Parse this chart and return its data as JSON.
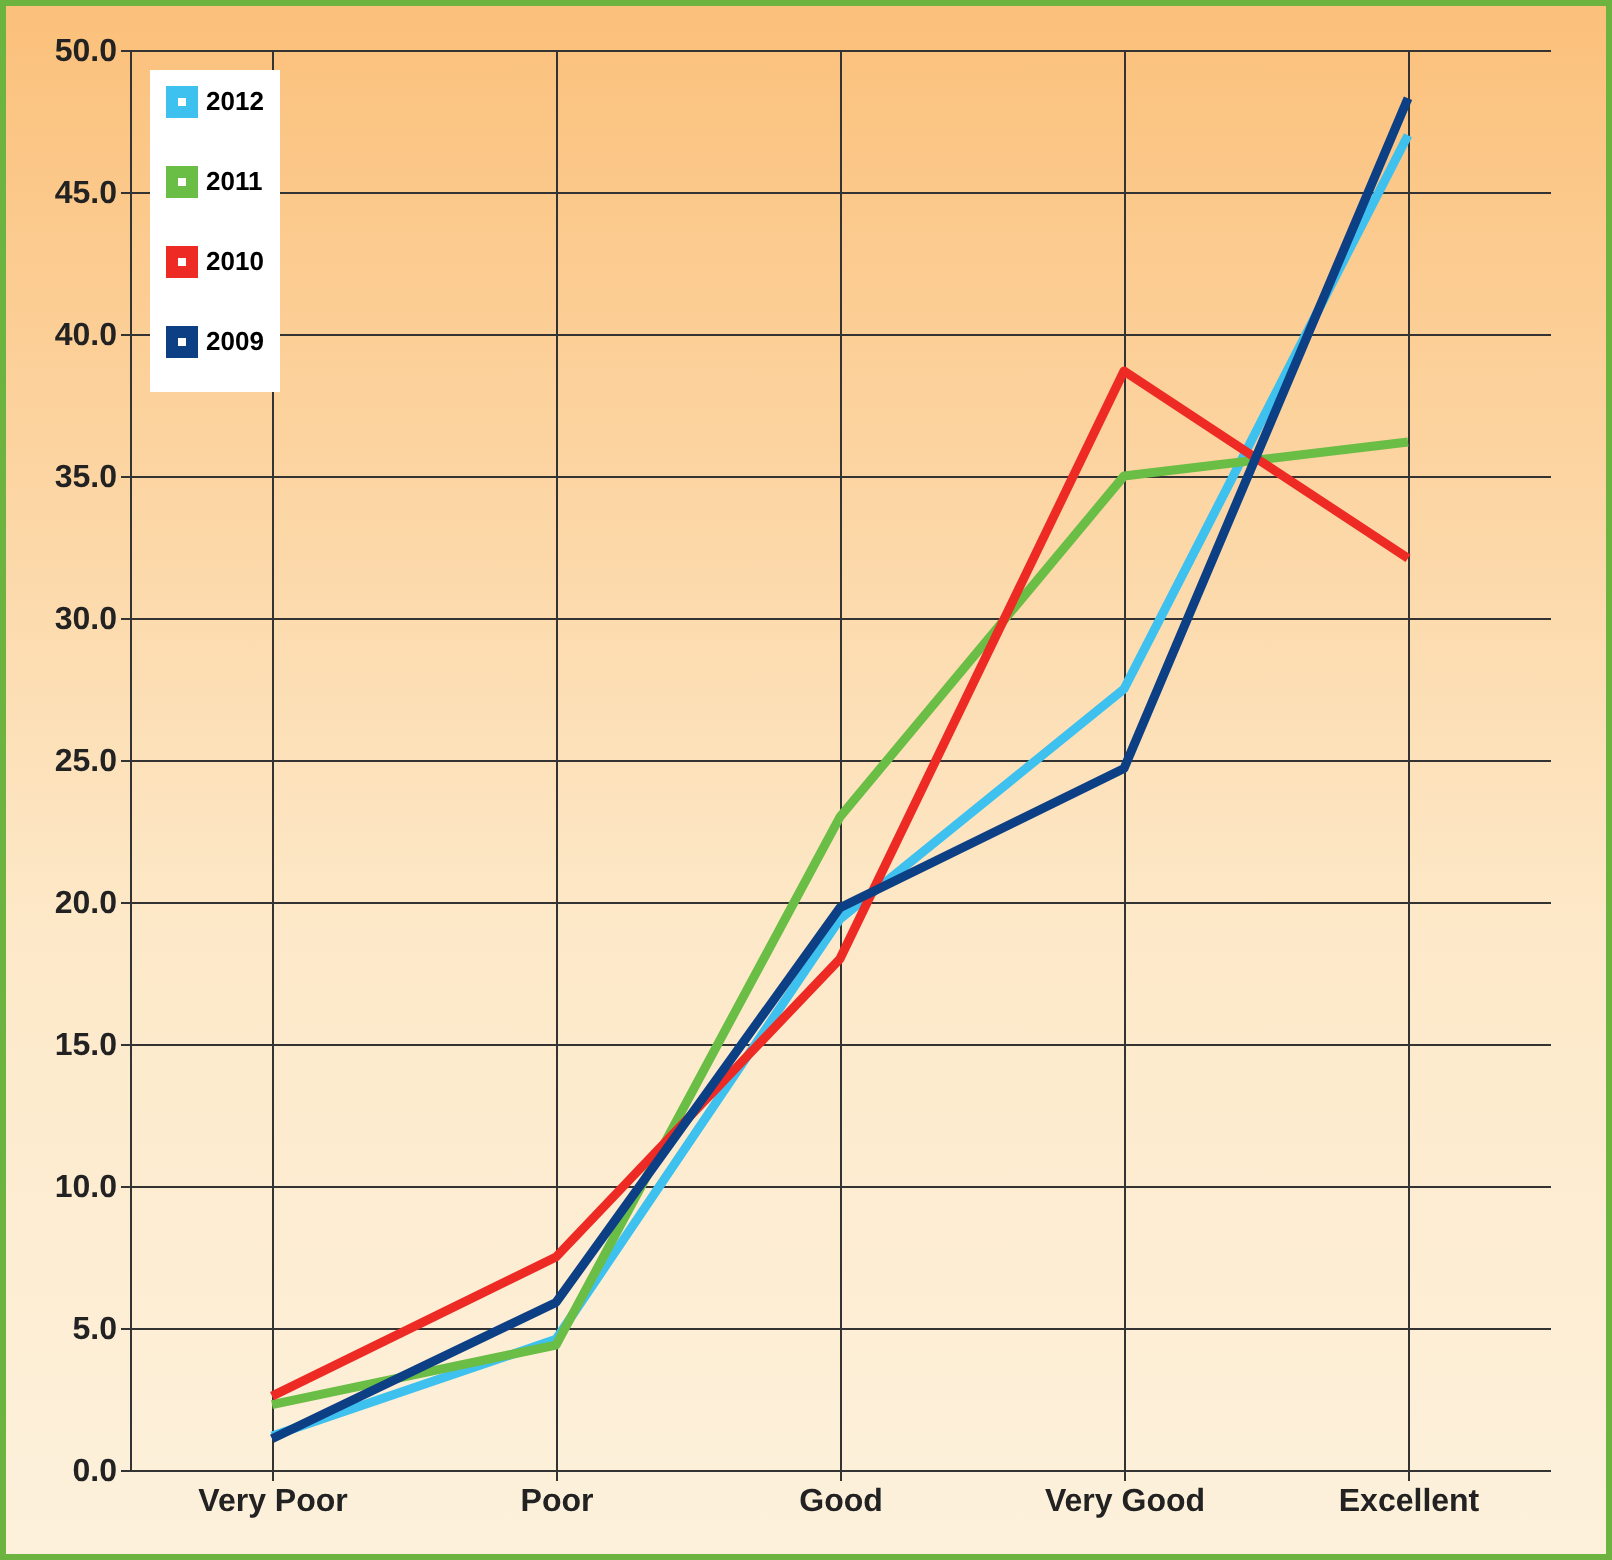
{
  "chart_data": {
    "type": "line",
    "categories": [
      "Very Poor",
      "Poor",
      "Good",
      "Very Good",
      "Excellent"
    ],
    "series": [
      {
        "name": "2012",
        "color": "#3fc1ef",
        "values": [
          1.2,
          4.6,
          19.4,
          27.5,
          47.0
        ]
      },
      {
        "name": "2011",
        "color": "#6abd45",
        "values": [
          2.3,
          4.4,
          23.0,
          35.0,
          36.2
        ]
      },
      {
        "name": "2010",
        "color": "#ee2a24",
        "values": [
          2.6,
          7.5,
          18.0,
          38.7,
          32.1
        ]
      },
      {
        "name": "2009",
        "color": "#0d3f85",
        "values": [
          1.1,
          5.9,
          19.8,
          24.7,
          48.3
        ]
      }
    ],
    "ylim": [
      0,
      50
    ],
    "yticks": [
      {
        "value": 0,
        "label": "0.0"
      },
      {
        "value": 5,
        "label": "5.0"
      },
      {
        "value": 10,
        "label": "10.0"
      },
      {
        "value": 15,
        "label": "15.0"
      },
      {
        "value": 20,
        "label": "20.0"
      },
      {
        "value": 25,
        "label": "25.0"
      },
      {
        "value": 30,
        "label": "30.0"
      },
      {
        "value": 35,
        "label": "35.0"
      },
      {
        "value": 40,
        "label": "40.0"
      },
      {
        "value": 45,
        "label": "45.0"
      },
      {
        "value": 50,
        "label": "50.0"
      }
    ],
    "grid": true,
    "legend": "top left",
    "marker": "none",
    "line_style": "solid"
  }
}
